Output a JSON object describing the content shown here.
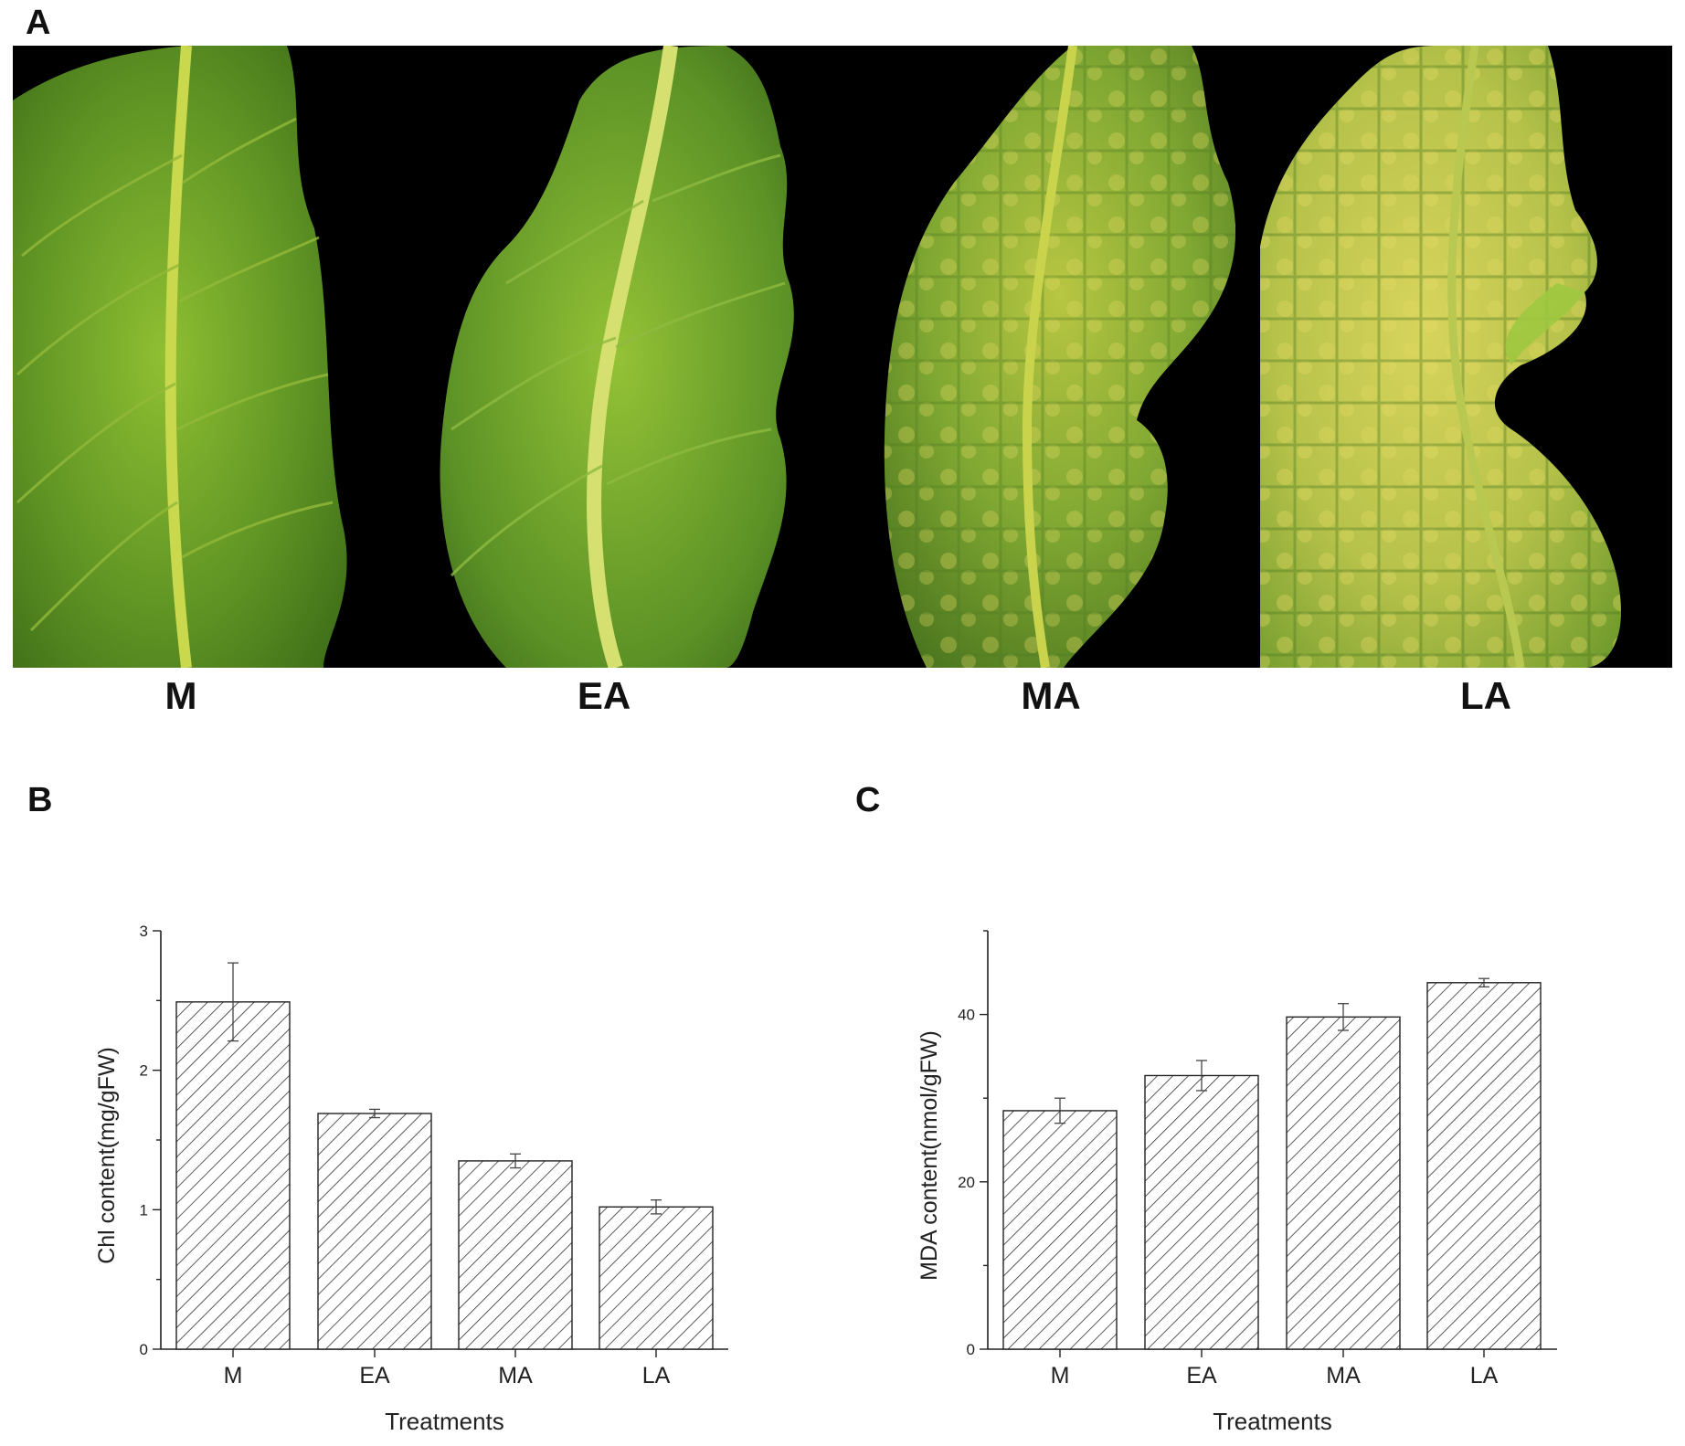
{
  "panels": {
    "a": "A",
    "b": "B",
    "c": "C"
  },
  "photo": {
    "labels": [
      "M",
      "EA",
      "MA",
      "LA"
    ],
    "colors": {
      "background": "#000000",
      "healthy": "#6fa12a",
      "midrib": "#c8d84a",
      "yellowing": "#d9d25a"
    }
  },
  "chart_data": [
    {
      "type": "bar",
      "categories": [
        "M",
        "EA",
        "MA",
        "LA"
      ],
      "values": [
        2.49,
        1.69,
        1.35,
        1.02
      ],
      "errors": [
        0.28,
        0.03,
        0.05,
        0.05
      ],
      "xlabel": "Treatments",
      "ylabel": "Chl content(mg/gFW)",
      "ylim": [
        0,
        3
      ],
      "yticks": [
        0,
        1,
        2,
        3
      ],
      "fill": "hatched",
      "grid": false
    },
    {
      "type": "bar",
      "categories": [
        "M",
        "EA",
        "MA",
        "LA"
      ],
      "values": [
        28.5,
        32.7,
        39.7,
        43.8
      ],
      "errors": [
        1.5,
        1.8,
        1.6,
        0.5
      ],
      "xlabel": "Treatments",
      "ylabel": "MDA content(nmol/gFW)",
      "ylim": [
        0,
        50
      ],
      "yticks": [
        0,
        20,
        40
      ],
      "fill": "hatched",
      "grid": false
    }
  ]
}
